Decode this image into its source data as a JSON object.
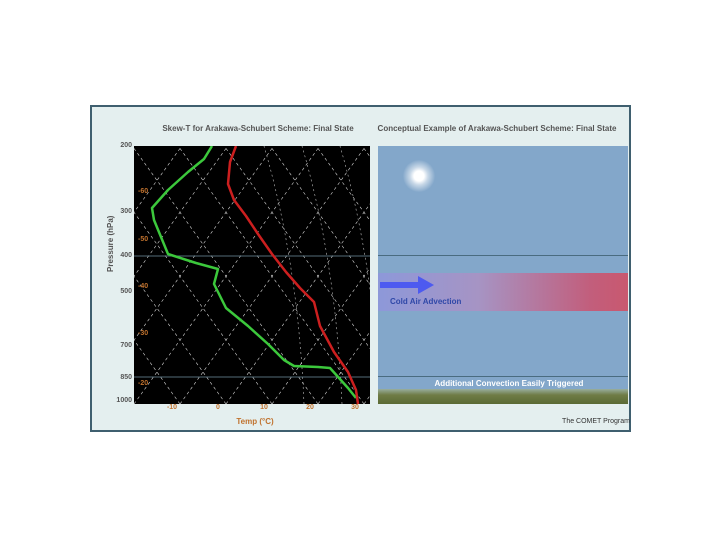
{
  "skewt": {
    "title": "Skew-T for Arakawa-Schubert Scheme: Final State",
    "ylabel": "Pressure (hPa)",
    "xlabel": "Temp (°C)",
    "pressure_ticks": [
      "200",
      "300",
      "400",
      "500",
      "700",
      "850",
      "1000"
    ],
    "temp_ticks": [
      "-10",
      "0",
      "10",
      "20",
      "30"
    ],
    "mixing_ratio_labels": [
      "-60",
      "-50",
      "-40",
      "-30",
      "-20"
    ],
    "colors": {
      "plot_bg": "#000000",
      "grid": "#d8d8d8",
      "temperature": "#cc1f1f",
      "dewpoint": "#3cc83c",
      "tick_text": "#c0722e"
    }
  },
  "concept": {
    "title": "Conceptual Example of Arakawa-Schubert Scheme: Final State",
    "cold_air_label": "Cold Air Advection",
    "convection_label": "Additional Convection Easily Triggered",
    "colors": {
      "sky": "#83a7ca",
      "band_left": "#8d98d9",
      "band_right": "#c9586f",
      "arrow": "#4d5af0"
    }
  },
  "credit": "The COMET Program"
}
